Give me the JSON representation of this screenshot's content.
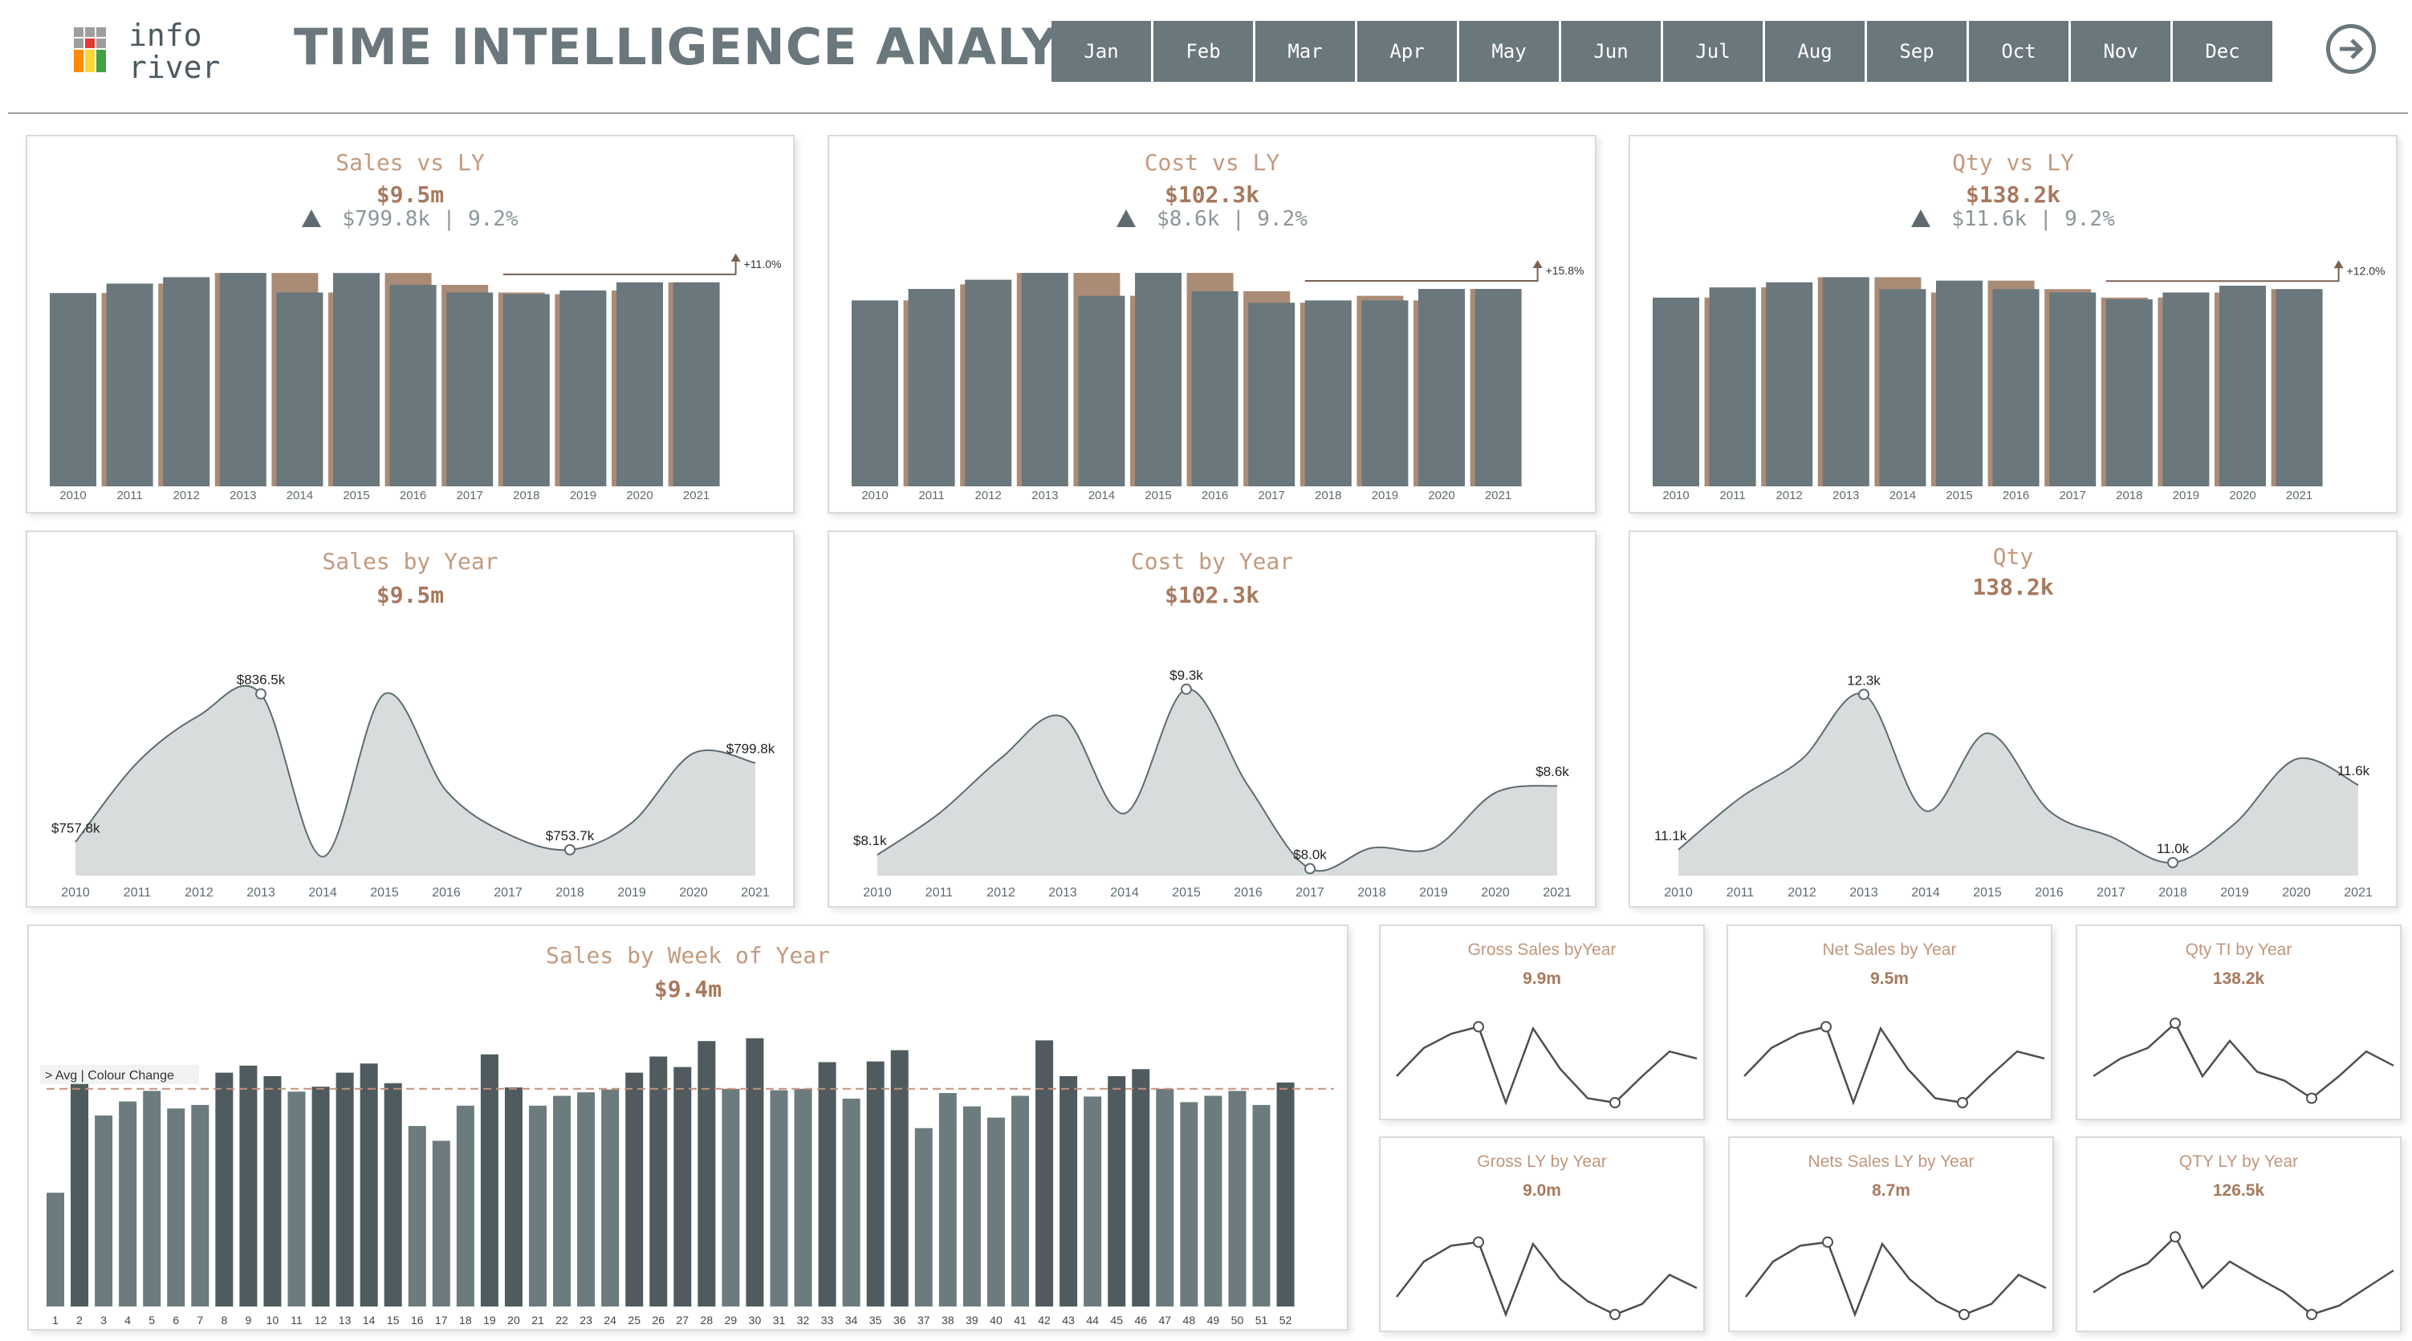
{
  "header": {
    "logo_line1": "info",
    "logo_line2": "river",
    "title": "TIME INTELLIGENCE ANALYSIS",
    "months": [
      "Jan",
      "Feb",
      "Mar",
      "Apr",
      "May",
      "Jun",
      "Jul",
      "Aug",
      "Sep",
      "Oct",
      "Nov",
      "Dec"
    ],
    "nav_icon": "arrow-right-circle-icon"
  },
  "colors": {
    "current": "#6a777c",
    "prior": "#a98b76",
    "dark_bar": "#4f5b5e",
    "light_bar": "#6c7b7e",
    "area": "#d9dcdd",
    "accent": "#c39a7e"
  },
  "years": [
    "2010",
    "2011",
    "2012",
    "2013",
    "2014",
    "2015",
    "2016",
    "2017",
    "2018",
    "2019",
    "2020",
    "2021"
  ],
  "kpi_panels": [
    {
      "title": "Sales vs LY",
      "value": "$9.5m",
      "variance": "$799.8k | 9.2%",
      "delta_label": "+11.0%"
    },
    {
      "title": "Cost vs LY",
      "value": "$102.3k",
      "variance": "$8.6k | 9.2%",
      "delta_label": "+15.8%"
    },
    {
      "title": "Qty vs LY",
      "value": "$138.2k",
      "variance": "$11.6k | 9.2%",
      "delta_label": "+12.0%"
    }
  ],
  "area_panels": [
    {
      "title": "Sales by Year",
      "value": "$9.5m"
    },
    {
      "title": "Cost by Year",
      "value": "$102.3k"
    },
    {
      "title": "Qty",
      "value": "138.2k"
    }
  ],
  "week_panel": {
    "title": "Sales by Week of Year",
    "value": "$9.4m",
    "avg_label": "> Avg | Colour Change"
  },
  "small_panels": [
    {
      "title": "Gross Sales byYear",
      "value": "9.9m"
    },
    {
      "title": "Net Sales by Year",
      "value": "9.5m"
    },
    {
      "title": "Qty TI by Year",
      "value": "138.2k"
    },
    {
      "title": "Gross LY by Year",
      "value": "9.0m"
    },
    {
      "title": "Nets Sales LY by Year",
      "value": "8.7m"
    },
    {
      "title": "QTY LY by Year",
      "value": "126.5k"
    }
  ],
  "chart_data": [
    {
      "type": "bar",
      "title": "Sales vs LY",
      "categories": [
        "2010",
        "2011",
        "2012",
        "2013",
        "2014",
        "2015",
        "2016",
        "2017",
        "2018",
        "2019",
        "2020",
        "2021"
      ],
      "series": [
        {
          "name": "LY",
          "values": [
            null,
            757.8,
            795,
            836.5,
            836.5,
            760,
            836.5,
            790,
            760,
            753.7,
            768,
            799.8
          ]
        },
        {
          "name": "CY",
          "values": [
            757.8,
            795,
            820,
            836.5,
            760,
            836.5,
            790,
            760,
            753.7,
            768,
            799.8,
            799.8
          ]
        }
      ],
      "ylim": [
        0,
        900
      ],
      "annotation": "+11.0%"
    },
    {
      "type": "bar",
      "title": "Cost vs LY",
      "categories": [
        "2010",
        "2011",
        "2012",
        "2013",
        "2014",
        "2015",
        "2016",
        "2017",
        "2018",
        "2019",
        "2020",
        "2021"
      ],
      "series": [
        {
          "name": "LY",
          "values": [
            null,
            8.1,
            8.8,
            9.3,
            9.3,
            8.3,
            9.3,
            8.5,
            8.0,
            8.3,
            8.1,
            8.6
          ]
        },
        {
          "name": "CY",
          "values": [
            8.1,
            8.6,
            9.0,
            9.3,
            8.3,
            9.3,
            8.5,
            8.0,
            8.1,
            8.1,
            8.6,
            8.6
          ]
        }
      ],
      "ylim": [
        0,
        10
      ],
      "annotation": "+15.8%"
    },
    {
      "type": "bar",
      "title": "Qty vs LY",
      "categories": [
        "2010",
        "2011",
        "2012",
        "2013",
        "2014",
        "2015",
        "2016",
        "2017",
        "2018",
        "2019",
        "2020",
        "2021"
      ],
      "series": [
        {
          "name": "LY",
          "values": [
            null,
            11.1,
            11.7,
            12.3,
            12.3,
            11.4,
            12.1,
            11.6,
            11.1,
            11.1,
            11.4,
            11.6
          ]
        },
        {
          "name": "CY",
          "values": [
            11.1,
            11.7,
            12.0,
            12.3,
            11.6,
            12.1,
            11.6,
            11.4,
            11.0,
            11.4,
            11.8,
            11.6
          ]
        }
      ],
      "ylim": [
        0,
        13.5
      ],
      "annotation": "+12.0%"
    },
    {
      "type": "area",
      "title": "Sales by Year",
      "x": [
        "2010",
        "2011",
        "2012",
        "2013",
        "2014",
        "2015",
        "2016",
        "2017",
        "2018",
        "2019",
        "2020",
        "2021"
      ],
      "values": [
        757.8,
        800,
        825,
        836.5,
        750,
        836.5,
        785,
        762,
        753.7,
        768,
        805,
        799.8
      ],
      "ylim": [
        740,
        850
      ],
      "labels": [
        "$757.8k",
        "$836.5k",
        "$753.7k",
        "$799.8k"
      ],
      "label_idx": [
        0,
        3,
        8,
        11
      ],
      "marker_idx": [
        3,
        8
      ]
    },
    {
      "type": "area",
      "title": "Cost by Year",
      "x": [
        "2010",
        "2011",
        "2012",
        "2013",
        "2014",
        "2015",
        "2016",
        "2017",
        "2018",
        "2019",
        "2020",
        "2021"
      ],
      "values": [
        8.1,
        8.4,
        8.8,
        9.1,
        8.4,
        9.3,
        8.6,
        8.0,
        8.15,
        8.15,
        8.55,
        8.6
      ],
      "ylim": [
        7.95,
        9.45
      ],
      "labels": [
        "$8.1k",
        "$9.3k",
        "$8.0k",
        "$8.6k"
      ],
      "label_idx": [
        0,
        5,
        7,
        11
      ],
      "marker_idx": [
        5,
        7
      ]
    },
    {
      "type": "area",
      "title": "Qty",
      "x": [
        "2010",
        "2011",
        "2012",
        "2013",
        "2014",
        "2015",
        "2016",
        "2017",
        "2018",
        "2019",
        "2020",
        "2021"
      ],
      "values": [
        11.1,
        11.5,
        11.8,
        12.3,
        11.4,
        12.0,
        11.4,
        11.2,
        11.0,
        11.3,
        11.8,
        11.6
      ],
      "ylim": [
        10.9,
        12.5
      ],
      "labels": [
        "11.1k",
        "12.3k",
        "11.0k",
        "11.6k"
      ],
      "label_idx": [
        0,
        3,
        8,
        11
      ],
      "marker_idx": [
        3,
        8
      ]
    },
    {
      "type": "bar",
      "title": "Sales by Week of Year",
      "categories": [
        "1",
        "2",
        "3",
        "4",
        "5",
        "6",
        "7",
        "8",
        "9",
        "10",
        "11",
        "12",
        "13",
        "14",
        "15",
        "16",
        "17",
        "18",
        "19",
        "20",
        "21",
        "22",
        "23",
        "24",
        "25",
        "26",
        "27",
        "28",
        "29",
        "30",
        "31",
        "32",
        "33",
        "34",
        "35",
        "36",
        "37",
        "38",
        "39",
        "40",
        "41",
        "42",
        "43",
        "44",
        "45",
        "46",
        "47",
        "48",
        "49",
        "50",
        "51",
        "52"
      ],
      "values": [
        162,
        332,
        272,
        292,
        307,
        282,
        287,
        333,
        343,
        328,
        306,
        313,
        333,
        346,
        318,
        257,
        236,
        286,
        359,
        312,
        286,
        300,
        305,
        309,
        333,
        356,
        341,
        378,
        310,
        382,
        308,
        310,
        348,
        296,
        349,
        365,
        254,
        304,
        285,
        269,
        300,
        379,
        328,
        299,
        328,
        338,
        310,
        291,
        300,
        307,
        287,
        319
      ],
      "avg": 310,
      "ylim": [
        0,
        400
      ]
    },
    {
      "type": "line",
      "title": "Gross Sales byYear",
      "values": [
        0.3,
        0.62,
        0.78,
        0.86,
        0.0,
        0.84,
        0.38,
        0.05,
        0.0,
        0.3,
        0.58,
        0.5
      ],
      "marker_idx": [
        3,
        8
      ]
    },
    {
      "type": "line",
      "title": "Net Sales by Year",
      "values": [
        0.3,
        0.62,
        0.78,
        0.86,
        0.0,
        0.84,
        0.38,
        0.05,
        0.0,
        0.3,
        0.58,
        0.5
      ],
      "marker_idx": [
        3,
        8
      ]
    },
    {
      "type": "line",
      "title": "Qty TI by Year",
      "values": [
        0.3,
        0.5,
        0.62,
        0.9,
        0.3,
        0.7,
        0.35,
        0.25,
        0.05,
        0.3,
        0.58,
        0.42
      ],
      "marker_idx": [
        3,
        8
      ]
    },
    {
      "type": "line",
      "title": "Gross LY by Year",
      "values": [
        0.2,
        0.6,
        0.78,
        0.82,
        0.0,
        0.8,
        0.4,
        0.15,
        0.0,
        0.12,
        0.45,
        0.3
      ],
      "marker_idx": [
        3,
        8
      ]
    },
    {
      "type": "line",
      "title": "Nets Sales LY by Year",
      "values": [
        0.2,
        0.6,
        0.78,
        0.82,
        0.0,
        0.8,
        0.4,
        0.15,
        0.0,
        0.12,
        0.45,
        0.3
      ],
      "marker_idx": [
        3,
        8
      ]
    },
    {
      "type": "line",
      "title": "QTY LY by Year",
      "values": [
        0.25,
        0.45,
        0.58,
        0.88,
        0.3,
        0.6,
        0.42,
        0.25,
        0.0,
        0.1,
        0.3,
        0.5
      ],
      "marker_idx": [
        3,
        8
      ]
    }
  ]
}
